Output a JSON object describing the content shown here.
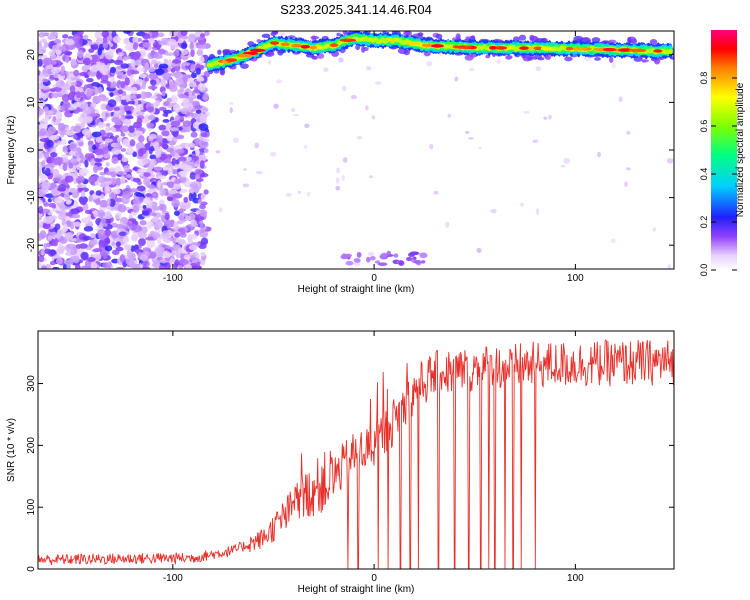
{
  "title": "S233.2025.341.14.46.R04",
  "chart_data": [
    {
      "type": "heatmap",
      "xlabel": "Height of straight line (km)",
      "ylabel": "Frequency (Hz)",
      "xlim": [
        -167,
        149
      ],
      "ylim": [
        -25,
        25
      ],
      "x_ticks": [
        -100,
        0,
        100
      ],
      "y_ticks": [
        -20,
        -10,
        0,
        10,
        20
      ],
      "colorbar": {
        "label": "Normalized spectral amplitude",
        "range": [
          0,
          1
        ],
        "ticks": [
          0.0,
          0.2,
          0.4,
          0.6,
          0.8
        ]
      },
      "ridge": {
        "description_points": [
          {
            "x": -80,
            "y": 18.0
          },
          {
            "x": -70,
            "y": 19.0
          },
          {
            "x": -60,
            "y": 20.5
          },
          {
            "x": -50,
            "y": 22.5
          },
          {
            "x": -40,
            "y": 22.0
          },
          {
            "x": -30,
            "y": 21.5
          },
          {
            "x": -20,
            "y": 22.0
          },
          {
            "x": -10,
            "y": 23.5
          },
          {
            "x": 0,
            "y": 23.0
          },
          {
            "x": 10,
            "y": 23.0
          },
          {
            "x": 25,
            "y": 22.0
          },
          {
            "x": 50,
            "y": 21.5
          },
          {
            "x": 100,
            "y": 21.3
          },
          {
            "x": 140,
            "y": 20.8
          }
        ]
      }
    },
    {
      "type": "line",
      "xlabel": "Height of straight line (km)",
      "ylabel": "SNR (10 * v/v)",
      "xlim": [
        -167,
        149
      ],
      "ylim": [
        0,
        385
      ],
      "x_ticks": [
        -100,
        0,
        100
      ],
      "y_ticks": [
        0,
        100,
        200,
        300
      ],
      "color": "#e8302a",
      "envelope": [
        {
          "x": -167,
          "y": 15
        },
        {
          "x": -90,
          "y": 18
        },
        {
          "x": -70,
          "y": 30
        },
        {
          "x": -55,
          "y": 50
        },
        {
          "x": -40,
          "y": 100
        },
        {
          "x": -30,
          "y": 130
        },
        {
          "x": -20,
          "y": 150
        },
        {
          "x": -10,
          "y": 185
        },
        {
          "x": 0,
          "y": 200
        },
        {
          "x": 10,
          "y": 240
        },
        {
          "x": 20,
          "y": 290
        },
        {
          "x": 30,
          "y": 315
        },
        {
          "x": 50,
          "y": 325
        },
        {
          "x": 80,
          "y": 330
        },
        {
          "x": 149,
          "y": 335
        }
      ],
      "dropouts_x": [
        -13,
        -8,
        2,
        7,
        13,
        18,
        22,
        32,
        40,
        47,
        53,
        57,
        60,
        65,
        69,
        73,
        80
      ]
    }
  ]
}
